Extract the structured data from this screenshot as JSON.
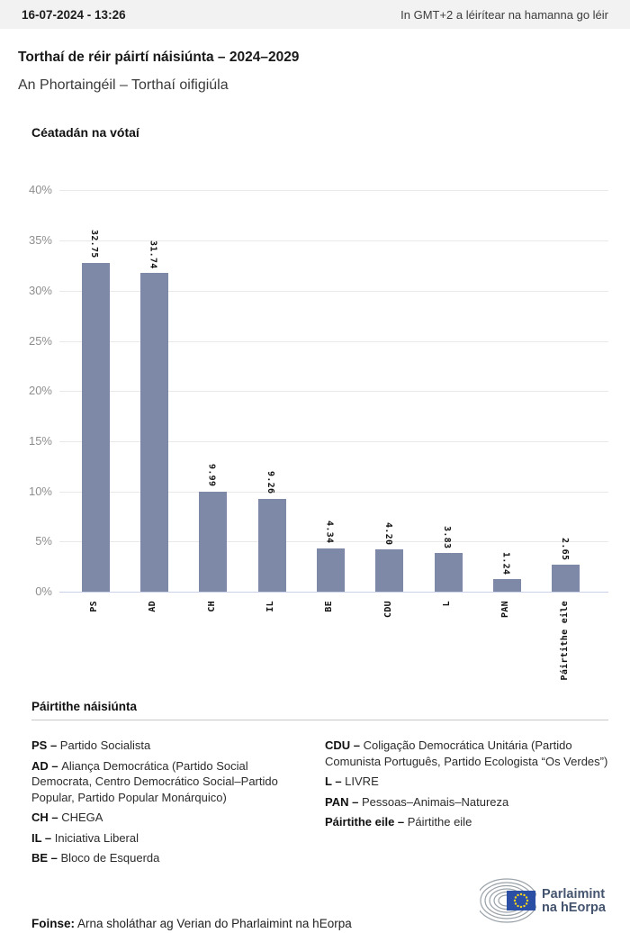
{
  "topbar": {
    "datetime": "16-07-2024 - 13:26",
    "timezone_note": "In GMT+2 a léirítear na hamanna go léir"
  },
  "header": {
    "title": "Torthaí de réir páirtí náisiúnta – 2024–2029",
    "subtitle": "An Phortaingéil – Torthaí oifigiúla"
  },
  "chart_data": {
    "type": "bar",
    "title": "Céatadán na vótaí",
    "categories": [
      "PS",
      "AD",
      "CH",
      "IL",
      "BE",
      "CDU",
      "L",
      "PAN",
      "Páirtithe eile"
    ],
    "values": [
      32.75,
      31.74,
      9.99,
      9.26,
      4.34,
      4.2,
      3.83,
      1.24,
      2.65
    ],
    "value_labels": [
      "32.75",
      "31.74",
      "9.99",
      "9.26",
      "4.34",
      "4.20",
      "3.83",
      "1.24",
      "2.65"
    ],
    "xlabel": "",
    "ylabel": "Céatadán na vótaí",
    "ylim": [
      0,
      40
    ],
    "ytick_step": 5,
    "yticks": [
      "0%",
      "5%",
      "10%",
      "15%",
      "20%",
      "25%",
      "30%",
      "35%",
      "40%"
    ],
    "grid": true,
    "legend_position": "none",
    "bar_color": "#7d89a6",
    "baseline_color": "#c9d2e8",
    "grid_color": "#e9e9e9"
  },
  "legend": {
    "heading": "Páirtithe náisiúnta",
    "columns": [
      [
        {
          "abbr": "PS",
          "name": "Partido Socialista"
        },
        {
          "abbr": "AD",
          "name": "Aliança Democrática (Partido Social Democrata, Centro Democrático Social–Partido Popular, Partido Popular Monárquico)"
        },
        {
          "abbr": "CH",
          "name": "CHEGA"
        },
        {
          "abbr": "IL",
          "name": "Iniciativa Liberal"
        },
        {
          "abbr": "BE",
          "name": "Bloco de Esquerda"
        }
      ],
      [
        {
          "abbr": "CDU",
          "name": "Coligação Democrática Unitária (Partido Comunista Português, Partido Ecologista “Os Verdes”)"
        },
        {
          "abbr": "L",
          "name": "LIVRE"
        },
        {
          "abbr": "PAN",
          "name": "Pessoas–Animais–Natureza"
        },
        {
          "abbr": "Páirtithe eile",
          "name": "Páirtithe eile"
        }
      ]
    ]
  },
  "footer": {
    "source_label": "Foinse:",
    "source_text": " Arna sholáthar ag Verian do Pharlaimint na hEorpa",
    "logo_line1": "Parlaimint",
    "logo_line2": "na hEorpa",
    "logo_colors": {
      "flag": "#2b4fa5",
      "stars": "#ffd617",
      "text": "#44546e",
      "arcs": "#9aa2a9"
    }
  }
}
